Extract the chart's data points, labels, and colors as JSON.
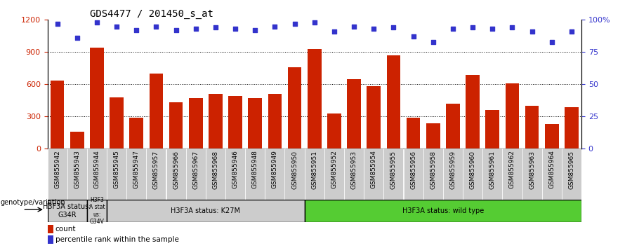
{
  "title": "GDS4477 / 201450_s_at",
  "categories": [
    "GSM855942",
    "GSM855943",
    "GSM855944",
    "GSM855945",
    "GSM855947",
    "GSM855957",
    "GSM855966",
    "GSM855967",
    "GSM855968",
    "GSM855946",
    "GSM855948",
    "GSM855949",
    "GSM855950",
    "GSM855951",
    "GSM855952",
    "GSM855953",
    "GSM855954",
    "GSM855955",
    "GSM855956",
    "GSM855958",
    "GSM855959",
    "GSM855960",
    "GSM855961",
    "GSM855962",
    "GSM855963",
    "GSM855964",
    "GSM855965"
  ],
  "counts": [
    635,
    160,
    940,
    480,
    290,
    700,
    430,
    470,
    510,
    490,
    470,
    510,
    760,
    930,
    330,
    650,
    580,
    870,
    290,
    240,
    420,
    690,
    360,
    610,
    400,
    230,
    390
  ],
  "percentiles": [
    97,
    86,
    98,
    95,
    92,
    95,
    92,
    93,
    94,
    93,
    92,
    95,
    97,
    98,
    91,
    95,
    93,
    94,
    87,
    83,
    93,
    94,
    93,
    94,
    91,
    83,
    91
  ],
  "bar_color": "#cc2200",
  "dot_color": "#3333cc",
  "ylim_left": [
    0,
    1200
  ],
  "ylim_right": [
    0,
    100
  ],
  "yticks_left": [
    0,
    300,
    600,
    900,
    1200
  ],
  "ytick_labels_left": [
    "0",
    "300",
    "600",
    "900",
    "1200"
  ],
  "yticks_right": [
    0,
    25,
    50,
    75,
    100
  ],
  "ytick_labels_right": [
    "0",
    "25",
    "50",
    "75",
    "100%"
  ],
  "grid_lines": [
    300,
    600,
    900
  ],
  "group_labels": [
    "H3F3A status:\nG34R",
    "H3F3\nA stat\nus:\nG34V",
    "H3F3A status: K27M",
    "H3F3A status: wild type"
  ],
  "group_ranges": [
    [
      0,
      1
    ],
    [
      2,
      2
    ],
    [
      3,
      12
    ],
    [
      13,
      26
    ]
  ],
  "group_colors": [
    "#cccccc",
    "#cccccc",
    "#cccccc",
    "#55cc33"
  ],
  "left_label": "genotype/variation",
  "legend_count_label": "count",
  "legend_pct_label": "percentile rank within the sample",
  "background_color": "#ffffff",
  "title_fontsize": 10,
  "axis_label_color_left": "#cc2200",
  "axis_label_color_right": "#3333cc",
  "xtick_bg_color": "#cccccc",
  "xtick_alt_color": "#dddddd"
}
